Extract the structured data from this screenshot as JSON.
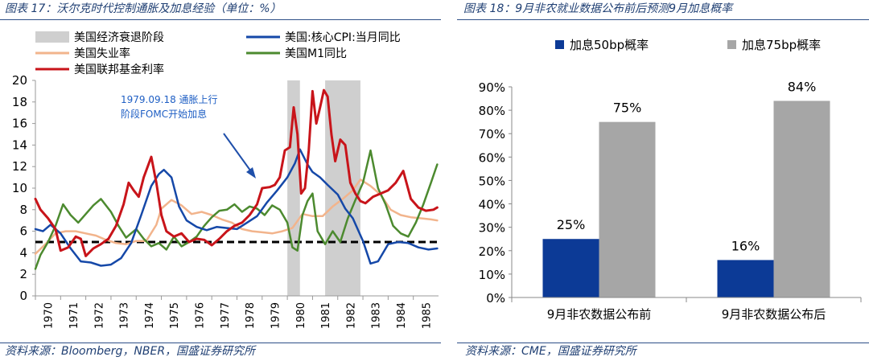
{
  "left": {
    "title": "图表 17：沃尔克时代控制通胀及加息经验（单位：%）",
    "source": "资料来源：Bloomberg，NBER，国盛证券研究所",
    "annotation": [
      "1979.09.18 通胀上行",
      "阶段FOMC开始加息"
    ]
  },
  "right": {
    "title": "图表 18：9月非农就业数据公布前后预测9月加息概率",
    "source": "资料来源：CME，国盛证券研究所"
  },
  "colors": {
    "cpi": "#1548a8",
    "m1": "#4c8a2f",
    "unemp": "#f2b48c",
    "fed": "#c8141a",
    "recession": "#cfcfcf",
    "bar50": "#0c3a96",
    "bar75": "#a6a6a6",
    "title": "#1f3f73"
  },
  "chart_data": [
    {
      "type": "line",
      "title": "沃尔克时代控制通胀及加息经验（单位：%）",
      "xlabel": "",
      "ylabel": "%",
      "xlim": [
        1970.0,
        1986.0
      ],
      "ylim": [
        0,
        20
      ],
      "yticks": [
        "0",
        "2",
        "4",
        "6",
        "8",
        "10",
        "12",
        "14",
        "16",
        "18",
        "20"
      ],
      "xticks": [
        "1970",
        "1971",
        "1972",
        "1973",
        "1974",
        "1975",
        "1976",
        "1977",
        "1978",
        "1979",
        "1980",
        "1981",
        "1982",
        "1983",
        "1984",
        "1985"
      ],
      "legend": [
        "美国经济衰退阶段",
        "美国:核心CPI:当月同比",
        "美国失业率",
        "美国M1同比",
        "美国联邦基金利率"
      ],
      "recessions": [
        [
          1980.0,
          1980.5
        ],
        [
          1981.5,
          1982.9
        ]
      ],
      "reference_line": 5,
      "series": [
        {
          "name": "美国:核心CPI:当月同比",
          "key": "cpi",
          "x": [
            1970.0,
            1970.3,
            1970.6,
            1971.0,
            1971.4,
            1971.8,
            1972.2,
            1972.6,
            1973.0,
            1973.4,
            1973.8,
            1974.2,
            1974.6,
            1974.9,
            1975.1,
            1975.4,
            1975.7,
            1976.0,
            1976.4,
            1976.8,
            1977.2,
            1977.6,
            1978.0,
            1978.4,
            1978.8,
            1979.2,
            1979.6,
            1980.0,
            1980.3,
            1980.5,
            1980.8,
            1981.0,
            1981.3,
            1981.6,
            1982.0,
            1982.3,
            1982.6,
            1983.0,
            1983.3,
            1983.6,
            1984.0,
            1984.4,
            1984.8,
            1985.2,
            1985.6,
            1985.95
          ],
          "y": [
            6.2,
            6.0,
            6.6,
            5.8,
            4.4,
            3.2,
            3.1,
            2.8,
            2.9,
            3.5,
            4.9,
            7.5,
            10.2,
            11.3,
            11.7,
            11.0,
            8.3,
            7.0,
            6.4,
            6.1,
            6.4,
            6.3,
            6.2,
            6.8,
            7.4,
            8.7,
            9.8,
            11.0,
            12.3,
            13.6,
            12.2,
            11.5,
            11.0,
            10.3,
            9.4,
            8.1,
            7.2,
            5.1,
            3.0,
            3.2,
            4.8,
            5.0,
            4.9,
            4.5,
            4.3,
            4.4
          ]
        },
        {
          "name": "美国M1同比",
          "key": "m1",
          "x": [
            1970.0,
            1970.2,
            1970.5,
            1970.8,
            1971.1,
            1971.4,
            1971.7,
            1972.0,
            1972.3,
            1972.6,
            1973.0,
            1973.3,
            1973.6,
            1974.0,
            1974.3,
            1974.6,
            1974.9,
            1975.2,
            1975.5,
            1975.8,
            1976.1,
            1976.4,
            1976.7,
            1977.0,
            1977.3,
            1977.6,
            1977.9,
            1978.2,
            1978.5,
            1978.8,
            1979.1,
            1979.4,
            1979.7,
            1980.0,
            1980.2,
            1980.4,
            1980.6,
            1980.8,
            1981.0,
            1981.2,
            1981.5,
            1981.8,
            1982.1,
            1982.4,
            1982.7,
            1983.0,
            1983.3,
            1983.6,
            1983.9,
            1984.2,
            1984.5,
            1984.8,
            1985.1,
            1985.4,
            1985.7,
            1985.95
          ],
          "y": [
            2.5,
            3.8,
            5.0,
            6.5,
            8.5,
            7.5,
            6.8,
            7.6,
            8.4,
            9.0,
            7.8,
            6.5,
            5.4,
            6.2,
            5.3,
            4.6,
            4.9,
            4.3,
            5.5,
            4.6,
            5.0,
            5.5,
            6.5,
            7.3,
            7.9,
            8.0,
            8.5,
            7.8,
            8.3,
            8.1,
            7.5,
            8.4,
            8.0,
            6.8,
            4.5,
            4.2,
            7.5,
            8.8,
            9.5,
            6.0,
            4.8,
            6.0,
            5.0,
            7.2,
            8.9,
            10.5,
            13.5,
            10.0,
            8.5,
            6.5,
            5.8,
            5.5,
            6.8,
            8.5,
            10.5,
            12.2
          ]
        },
        {
          "name": "美国失业率",
          "key": "unemp",
          "x": [
            1970.0,
            1970.4,
            1970.8,
            1971.2,
            1971.6,
            1972.0,
            1972.4,
            1972.8,
            1973.2,
            1973.6,
            1974.0,
            1974.4,
            1974.8,
            1975.0,
            1975.4,
            1975.8,
            1976.2,
            1976.6,
            1977.0,
            1977.4,
            1977.8,
            1978.2,
            1978.6,
            1979.0,
            1979.4,
            1979.8,
            1980.2,
            1980.6,
            1981.0,
            1981.4,
            1981.8,
            1982.2,
            1982.6,
            1982.9,
            1983.3,
            1983.7,
            1984.1,
            1984.5,
            1984.9,
            1985.3,
            1985.7,
            1985.95
          ],
          "y": [
            3.9,
            4.8,
            5.8,
            6.0,
            6.0,
            5.8,
            5.6,
            5.2,
            4.9,
            4.8,
            5.1,
            5.1,
            6.6,
            8.1,
            8.9,
            8.4,
            7.6,
            7.8,
            7.5,
            7.1,
            6.8,
            6.2,
            6.0,
            5.9,
            5.8,
            6.0,
            6.3,
            7.6,
            7.4,
            7.4,
            8.3,
            9.0,
            9.8,
            10.8,
            10.2,
            9.4,
            8.0,
            7.5,
            7.3,
            7.2,
            7.1,
            7.0
          ]
        },
        {
          "name": "美国联邦基金利率",
          "key": "fed",
          "x": [
            1970.0,
            1970.2,
            1970.5,
            1970.8,
            1971.0,
            1971.3,
            1971.6,
            1971.8,
            1972.0,
            1972.3,
            1972.6,
            1972.9,
            1973.2,
            1973.5,
            1973.7,
            1973.9,
            1974.1,
            1974.3,
            1974.6,
            1974.8,
            1975.0,
            1975.2,
            1975.5,
            1975.8,
            1976.1,
            1976.4,
            1976.7,
            1977.0,
            1977.3,
            1977.6,
            1977.9,
            1978.2,
            1978.5,
            1978.8,
            1979.0,
            1979.3,
            1979.5,
            1979.7,
            1979.9,
            1980.1,
            1980.25,
            1980.4,
            1980.55,
            1980.7,
            1980.85,
            1981.0,
            1981.15,
            1981.3,
            1981.45,
            1981.6,
            1981.75,
            1981.9,
            1982.1,
            1982.3,
            1982.5,
            1982.7,
            1982.9,
            1983.1,
            1983.4,
            1983.7,
            1984.0,
            1984.3,
            1984.6,
            1984.9,
            1985.2,
            1985.5,
            1985.8,
            1985.95
          ],
          "y": [
            9.0,
            8.0,
            7.2,
            6.2,
            4.2,
            4.5,
            5.5,
            5.3,
            3.7,
            4.4,
            4.8,
            5.3,
            6.5,
            8.5,
            10.5,
            9.8,
            9.2,
            11.0,
            12.9,
            10.5,
            7.5,
            6.0,
            5.5,
            5.8,
            5.0,
            5.3,
            5.2,
            4.7,
            5.3,
            6.0,
            6.5,
            6.8,
            7.5,
            8.5,
            10.0,
            10.1,
            10.3,
            11.0,
            13.5,
            13.8,
            17.5,
            15.0,
            9.5,
            10.0,
            13.5,
            19.0,
            16.0,
            17.5,
            19.1,
            18.5,
            15.0,
            12.5,
            14.5,
            14.0,
            10.5,
            9.5,
            8.8,
            8.6,
            9.2,
            9.5,
            9.8,
            10.5,
            11.6,
            9.0,
            8.2,
            7.9,
            8.0,
            8.2
          ]
        }
      ]
    },
    {
      "type": "bar",
      "title": "9月非农就业数据公布前后预测9月加息概率",
      "categories": [
        "9月非农数据公布前",
        "9月非农数据公布后"
      ],
      "series": [
        {
          "name": "加息50bp概率",
          "key": "bar50",
          "values": [
            25,
            16
          ],
          "labels": [
            "25%",
            "16%"
          ]
        },
        {
          "name": "加息75bp概率",
          "key": "bar75",
          "values": [
            75,
            84
          ],
          "labels": [
            "75%",
            "84%"
          ]
        }
      ],
      "ylim": [
        0,
        90
      ],
      "yticks": [
        "0%",
        "10%",
        "20%",
        "30%",
        "40%",
        "50%",
        "60%",
        "70%",
        "80%",
        "90%"
      ],
      "xlabel": "",
      "ylabel": ""
    }
  ]
}
